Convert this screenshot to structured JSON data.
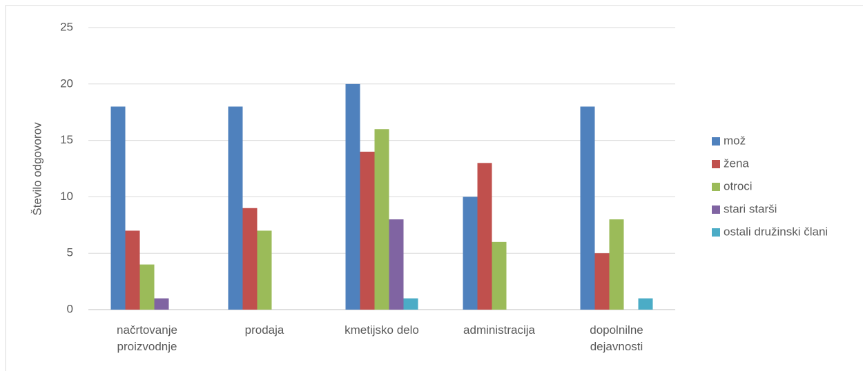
{
  "chart_data": {
    "type": "bar",
    "y_label": "Število odgovorov",
    "categories": [
      "načrtovanje proizvodnje",
      "prodaja",
      "kmetijsko delo",
      "administracija",
      "dopolnilne dejavnosti"
    ],
    "series": [
      {
        "name": "mož",
        "color": "#4f81bd",
        "values": [
          18,
          18,
          20,
          10,
          18
        ]
      },
      {
        "name": "žena",
        "color": "#c0504d",
        "values": [
          7,
          9,
          14,
          13,
          5
        ]
      },
      {
        "name": "otroci",
        "color": "#9bbb59",
        "values": [
          4,
          7,
          16,
          6,
          8
        ]
      },
      {
        "name": "stari starši",
        "color": "#8064a2",
        "values": [
          1,
          0,
          8,
          0,
          0
        ]
      },
      {
        "name": "ostali družinski člani",
        "color": "#4bacc6",
        "values": [
          0,
          0,
          1,
          0,
          1
        ]
      }
    ],
    "ylim": [
      0,
      25
    ],
    "yticks": [
      0,
      5,
      10,
      15,
      20,
      25
    ],
    "grid": true,
    "legend": "right"
  }
}
